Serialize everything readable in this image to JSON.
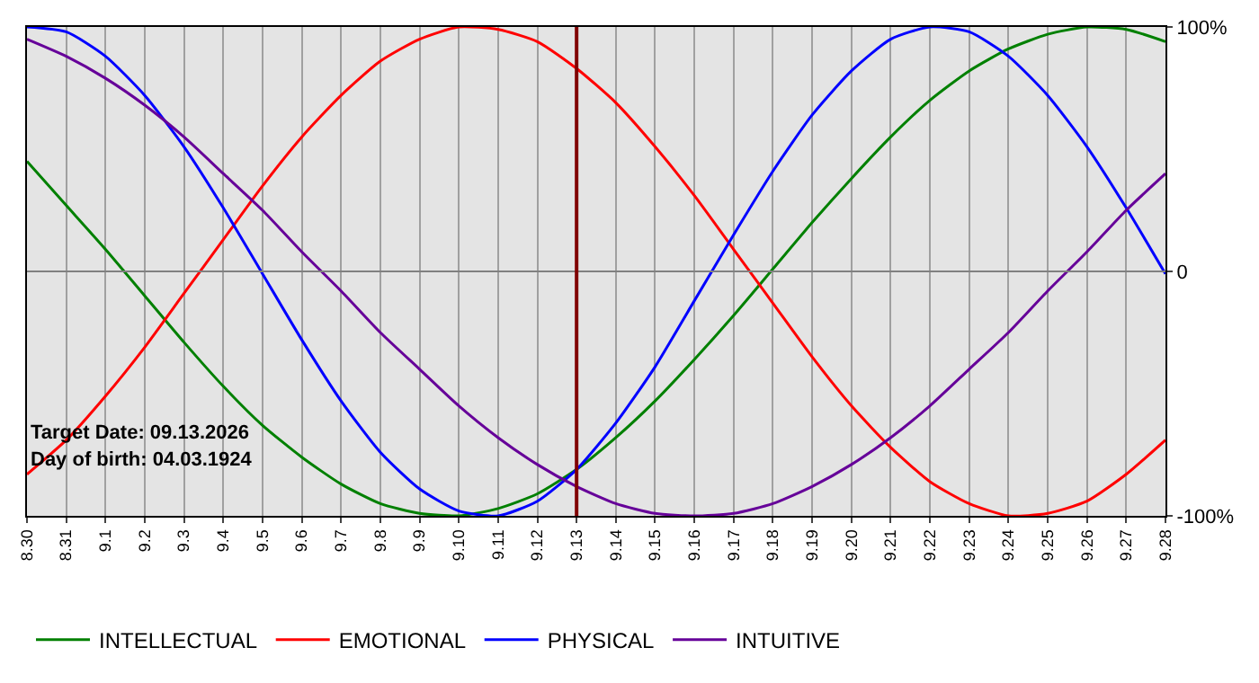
{
  "chart_data": {
    "type": "line",
    "categories": [
      "8.30",
      "8.31",
      "9.1",
      "9.2",
      "9.3",
      "9.4",
      "9.5",
      "9.6",
      "9.7",
      "9.8",
      "9.9",
      "9.10",
      "9.11",
      "9.12",
      "9.13",
      "9.14",
      "9.15",
      "9.16",
      "9.17",
      "9.18",
      "9.19",
      "9.20",
      "9.21",
      "9.22",
      "9.23",
      "9.24",
      "9.25",
      "9.26",
      "9.27",
      "9.28"
    ],
    "series": [
      {
        "name": "INTELLECTUAL",
        "color": "#008000",
        "values": [
          45,
          27,
          9,
          -10,
          -29,
          -47,
          -63,
          -76,
          -87,
          -95,
          -99,
          -100,
          -97,
          -91,
          -81,
          -68,
          -53,
          -36,
          -18,
          1,
          20,
          38,
          55,
          70,
          82,
          91,
          97,
          100,
          99,
          94
        ]
      },
      {
        "name": "EMOTIONAL",
        "color": "#ff0000",
        "values": [
          -83,
          -69,
          -51,
          -31,
          -9,
          13,
          35,
          55,
          72,
          86,
          95,
          100,
          99,
          94,
          83,
          69,
          51,
          31,
          9,
          -13,
          -35,
          -55,
          -72,
          -86,
          -95,
          -100,
          -99,
          -94,
          -83,
          -69
        ]
      },
      {
        "name": "PHYSICAL",
        "color": "#0000ff",
        "values": [
          100,
          98,
          88,
          72,
          51,
          26,
          -1,
          -28,
          -53,
          -74,
          -89,
          -98,
          -100,
          -94,
          -81,
          -62,
          -39,
          -12,
          15,
          41,
          64,
          82,
          95,
          100,
          98,
          88,
          72,
          51,
          26,
          -1
        ]
      },
      {
        "name": "INTUITIVE",
        "color": "#660099",
        "values": [
          95,
          88,
          79,
          68,
          55,
          40,
          25,
          8,
          -8,
          -25,
          -40,
          -55,
          -68,
          -79,
          -88,
          -95,
          -99,
          -100,
          -99,
          -95,
          -88,
          -79,
          -68,
          -55,
          -40,
          -25,
          -8,
          8,
          25,
          40
        ]
      }
    ],
    "ylim": [
      -100,
      100
    ],
    "yticks": [
      {
        "value": 100,
        "label": "100%"
      },
      {
        "value": 0,
        "label": "0"
      },
      {
        "value": -100,
        "label": "-100%"
      }
    ],
    "ref_lines": [
      {
        "axis": "y",
        "value": 0,
        "color": "#808080"
      },
      {
        "axis": "x",
        "value": "9.13",
        "color": "#800000"
      }
    ],
    "annotations": [
      "Target Date: 09.13.2026",
      "Day of birth: 04.03.1924"
    ],
    "grid": "x",
    "legend": "bottom",
    "marker": "none",
    "line_style": "solid"
  }
}
